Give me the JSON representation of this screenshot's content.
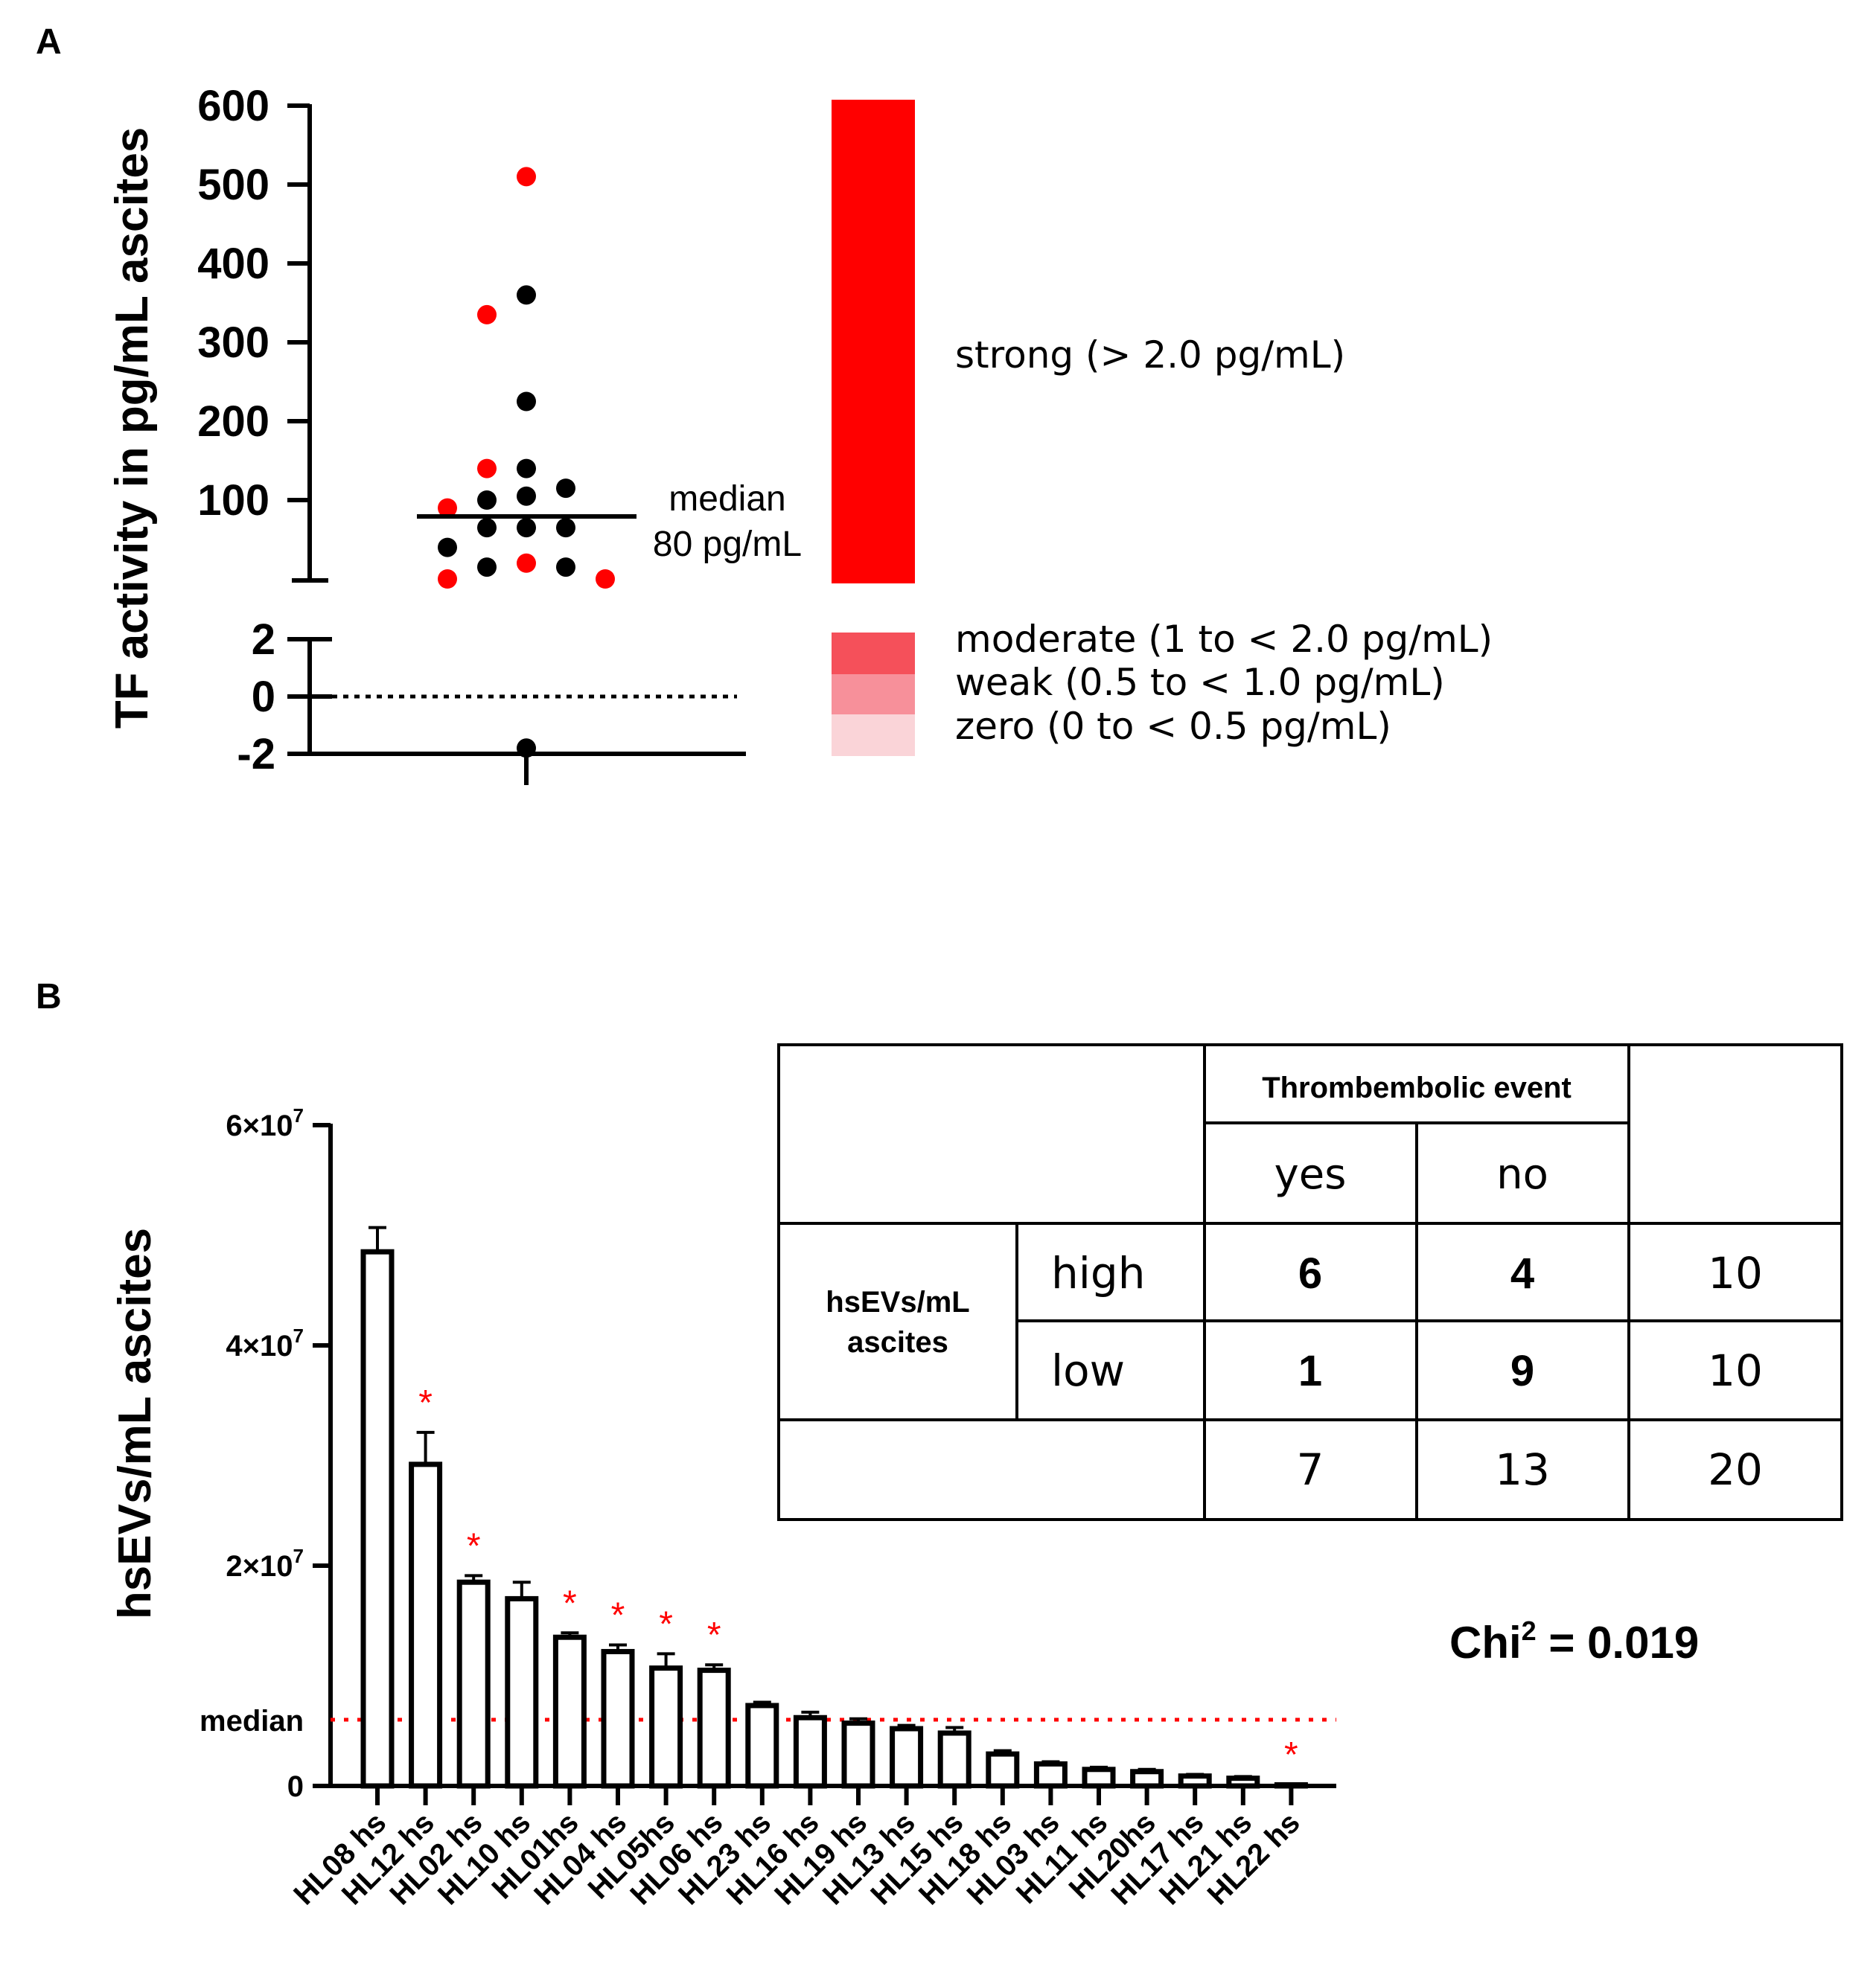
{
  "panel_a": {
    "label": "A",
    "ylabel": "TF activity in pg/mL ascites",
    "median_label_1": "median",
    "median_label_2": "80 pg/mL",
    "legend": [
      {
        "label": "strong (> 2.0 pg/mL)",
        "color": "#ff0000"
      },
      {
        "label": "moderate (1 to < 2.0 pg/mL)",
        "color": "#f5505a"
      },
      {
        "label": "weak (0.5 to < 1.0 pg/mL)",
        "color": "#f7909a"
      },
      {
        "label": "zero (0 to < 0.5 pg/mL)",
        "color": "#fad4d8"
      }
    ]
  },
  "panel_b": {
    "label": "B",
    "ylabel": "hsEVs/mL ascites",
    "median_label": "median",
    "chi_base": "Chi",
    "chi_sup": "2",
    "chi_value": " = 0.019",
    "table": {
      "header": "Thrombembolic event",
      "col_yes": "yes",
      "col_no": "no",
      "row_group": [
        "hsEVs/mL",
        "ascites"
      ],
      "rows": [
        {
          "label": "high",
          "yes": "6",
          "no": "4",
          "total": "10"
        },
        {
          "label": "low",
          "yes": "1",
          "no": "9",
          "total": "10"
        }
      ],
      "totals": {
        "yes": "7",
        "no": "13",
        "total": "20"
      }
    }
  },
  "chart_data": [
    {
      "type": "scatter",
      "panel": "A",
      "ylabel": "TF activity in pg/mL ascites",
      "axis_segments": [
        {
          "ticks": [
            100,
            200,
            300,
            400,
            500,
            600
          ],
          "ylim": [
            0,
            600
          ]
        },
        {
          "ticks": [
            -2,
            0,
            2
          ],
          "ylim": [
            -2,
            2
          ]
        }
      ],
      "reference_line": 0,
      "median": 80,
      "colors": {
        "black": "#000000",
        "red": "#ff0000"
      },
      "points": [
        {
          "y": 510,
          "color": "red"
        },
        {
          "y": 360,
          "color": "black"
        },
        {
          "y": 335,
          "color": "red"
        },
        {
          "y": 225,
          "color": "black"
        },
        {
          "y": 140,
          "color": "black"
        },
        {
          "y": 140,
          "color": "red"
        },
        {
          "y": 115,
          "color": "black"
        },
        {
          "y": 105,
          "color": "black"
        },
        {
          "y": 100,
          "color": "black"
        },
        {
          "y": 90,
          "color": "red"
        },
        {
          "y": 65,
          "color": "black"
        },
        {
          "y": 65,
          "color": "black"
        },
        {
          "y": 65,
          "color": "black"
        },
        {
          "y": 40,
          "color": "black"
        },
        {
          "y": 20,
          "color": "red"
        },
        {
          "y": 15,
          "color": "black"
        },
        {
          "y": 15,
          "color": "black"
        },
        {
          "y": 0,
          "color": "red"
        },
        {
          "y": 0,
          "color": "red"
        },
        {
          "y": -1.8,
          "color": "black"
        }
      ]
    },
    {
      "type": "bar",
      "panel": "B",
      "ylabel": "hsEVs/mL ascites",
      "ylim": [
        0,
        60000000
      ],
      "ytick_labels": [
        {
          "value": 0,
          "base": "0",
          "exp": ""
        },
        {
          "value": 20000000,
          "base": "2×10",
          "exp": "7"
        },
        {
          "value": 40000000,
          "base": "4×10",
          "exp": "7"
        },
        {
          "value": 60000000,
          "base": "6×10",
          "exp": "7"
        }
      ],
      "median": 6000000,
      "categories": [
        "HL08 hs",
        "HL12 hs",
        "HL02 hs",
        "HL10 hs",
        "HL01hs",
        "HL04 hs",
        "HL05hs",
        "HL06 hs",
        "HL23 hs",
        "HL16 hs",
        "HL19 hs",
        "HL13 hs",
        "HL15 hs",
        "HL18 hs",
        "HL03 hs",
        "HL11 hs",
        "HL20hs",
        "HL17 hs",
        "HL21 hs",
        "HL22 hs"
      ],
      "values": [
        48500000,
        29200000,
        18500000,
        17000000,
        13500000,
        12200000,
        10700000,
        10500000,
        7300000,
        6200000,
        5700000,
        5200000,
        4800000,
        2900000,
        2000000,
        1500000,
        1300000,
        900000,
        700000,
        100000
      ],
      "errors": [
        2200000,
        2900000,
        600000,
        1500000,
        400000,
        600000,
        1300000,
        500000,
        300000,
        500000,
        400000,
        300000,
        500000,
        300000,
        200000,
        200000,
        200000,
        150000,
        150000,
        50000
      ],
      "significant": [
        false,
        true,
        true,
        false,
        true,
        true,
        true,
        true,
        false,
        false,
        false,
        false,
        false,
        false,
        false,
        false,
        false,
        false,
        false,
        true
      ],
      "marker": "*",
      "marker_color": "#ff0000"
    }
  ]
}
